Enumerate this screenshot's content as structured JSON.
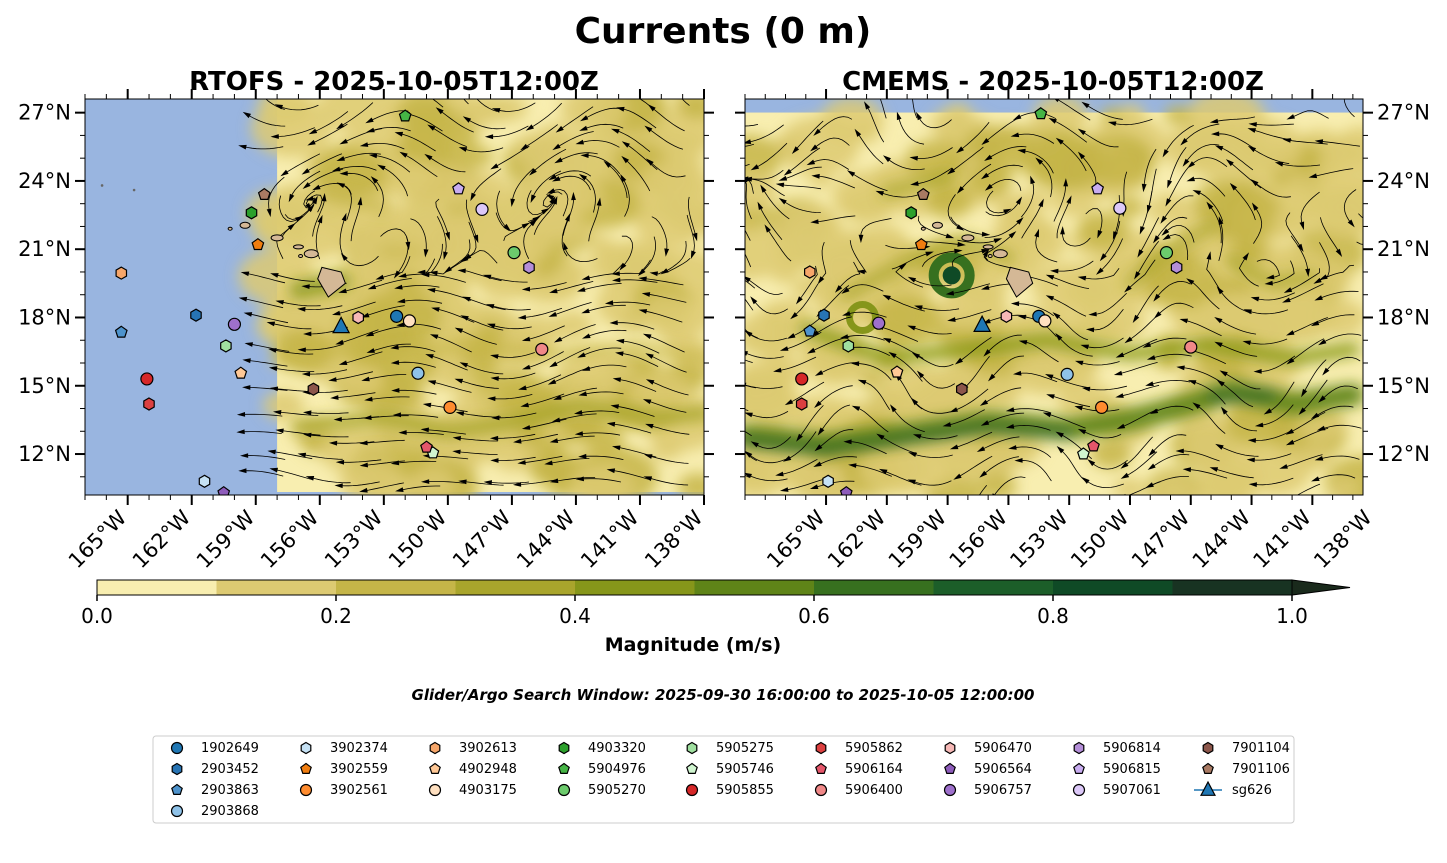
{
  "figure_title": "Currents (0 m)",
  "subtitle": "Glider/Argo Search Window: 2025-09-30 16:00:00 to 2025-10-05 12:00:00",
  "colors": {
    "land_ocean_mask": "#99b5e0",
    "island": "#d4b896",
    "streamline": "#000000",
    "sg626": "#1f77b4"
  },
  "chart_data": [
    {
      "type": "map",
      "panel": "left",
      "title": "RTOFS - 2025-10-05T12:00Z",
      "xlim": [
        -167,
        -138
      ],
      "ylim": [
        10.2,
        27.6
      ],
      "data_extent_west_lon": -158,
      "x_ticks": [
        "165°W",
        "162°W",
        "159°W",
        "156°W",
        "153°W",
        "150°W",
        "147°W",
        "144°W",
        "141°W",
        "138°W"
      ],
      "x_tick_values": [
        -165,
        -162,
        -159,
        -156,
        -153,
        -150,
        -147,
        -144,
        -141,
        -138
      ],
      "y_ticks": [
        "12°N",
        "15°N",
        "18°N",
        "21°N",
        "24°N",
        "27°N"
      ],
      "y_tick_values": [
        12,
        15,
        18,
        21,
        24,
        27
      ],
      "ytick_side": "left",
      "markers": [
        {
          "id": "1902649",
          "lon": -152.4,
          "lat": 18.05
        },
        {
          "id": "2903452",
          "lon": -161.8,
          "lat": 18.1
        },
        {
          "id": "2903863",
          "lon": -165.3,
          "lat": 17.35
        },
        {
          "id": "2903868",
          "lon": -151.4,
          "lat": 15.55
        },
        {
          "id": "3902374",
          "lon": -161.4,
          "lat": 10.8
        },
        {
          "id": "3902559",
          "lon": -158.9,
          "lat": 21.2
        },
        {
          "id": "3902561",
          "lon": -149.9,
          "lat": 14.05
        },
        {
          "id": "3902613",
          "lon": -165.3,
          "lat": 19.95
        },
        {
          "id": "4902948",
          "lon": -159.7,
          "lat": 15.55
        },
        {
          "id": "4903175",
          "lon": -151.8,
          "lat": 17.85
        },
        {
          "id": "4903320",
          "lon": -159.2,
          "lat": 22.6
        },
        {
          "id": "5904976",
          "lon": -152.0,
          "lat": 26.85
        },
        {
          "id": "5905270",
          "lon": -146.9,
          "lat": 20.85
        },
        {
          "id": "5905275",
          "lon": -160.4,
          "lat": 16.75
        },
        {
          "id": "5905746",
          "lon": -150.7,
          "lat": 12.05
        },
        {
          "id": "5905855",
          "lon": -164.1,
          "lat": 15.3
        },
        {
          "id": "5905862",
          "lon": -164.0,
          "lat": 14.2
        },
        {
          "id": "5906164",
          "lon": -151.0,
          "lat": 12.3
        },
        {
          "id": "5906400",
          "lon": -145.6,
          "lat": 16.6
        },
        {
          "id": "5906470",
          "lon": -154.2,
          "lat": 18.0
        },
        {
          "id": "5906564",
          "lon": -160.5,
          "lat": 10.3
        },
        {
          "id": "5906757",
          "lon": -160.0,
          "lat": 17.7
        },
        {
          "id": "5906814",
          "lon": -146.2,
          "lat": 20.2
        },
        {
          "id": "5906815",
          "lon": -149.5,
          "lat": 23.65
        },
        {
          "id": "5907061",
          "lon": -148.4,
          "lat": 22.75
        },
        {
          "id": "7901104",
          "lon": -156.3,
          "lat": 14.85
        },
        {
          "id": "7901106",
          "lon": -158.6,
          "lat": 23.4
        },
        {
          "id": "sg626",
          "lon": -155.0,
          "lat": 17.6
        }
      ]
    },
    {
      "type": "map",
      "panel": "right",
      "title": "CMEMS - 2025-10-05T12:00Z",
      "xlim": [
        -169,
        -138.5
      ],
      "ylim": [
        10.2,
        27.6
      ],
      "data_north_lat": 27.0,
      "x_ticks": [
        "165°W",
        "162°W",
        "159°W",
        "156°W",
        "153°W",
        "150°W",
        "147°W",
        "144°W",
        "141°W",
        "138°W"
      ],
      "x_tick_values": [
        -165,
        -162,
        -159,
        -156,
        -153,
        -150,
        -147,
        -144,
        -141,
        -138
      ],
      "y_ticks": [
        "12°N",
        "15°N",
        "18°N",
        "21°N",
        "24°N",
        "27°N"
      ],
      "y_tick_values": [
        12,
        15,
        18,
        21,
        24,
        27
      ],
      "ytick_side": "right",
      "markers": [
        {
          "id": "1902649",
          "lon": -154.5,
          "lat": 18.05
        },
        {
          "id": "2903452",
          "lon": -165.1,
          "lat": 18.1
        },
        {
          "id": "2903863",
          "lon": -165.8,
          "lat": 17.4
        },
        {
          "id": "2903868",
          "lon": -153.1,
          "lat": 15.5
        },
        {
          "id": "3902374",
          "lon": -164.9,
          "lat": 10.8
        },
        {
          "id": "3902559",
          "lon": -160.3,
          "lat": 21.2
        },
        {
          "id": "3902561",
          "lon": -151.4,
          "lat": 14.05
        },
        {
          "id": "3902613",
          "lon": -165.8,
          "lat": 20.0
        },
        {
          "id": "4902948",
          "lon": -161.5,
          "lat": 15.6
        },
        {
          "id": "4903175",
          "lon": -154.2,
          "lat": 17.85
        },
        {
          "id": "4903320",
          "lon": -160.8,
          "lat": 22.6
        },
        {
          "id": "5904976",
          "lon": -154.4,
          "lat": 26.95
        },
        {
          "id": "5905270",
          "lon": -148.2,
          "lat": 20.85
        },
        {
          "id": "5905275",
          "lon": -163.9,
          "lat": 16.75
        },
        {
          "id": "5905746",
          "lon": -152.3,
          "lat": 12.0
        },
        {
          "id": "5905855",
          "lon": -166.2,
          "lat": 15.3
        },
        {
          "id": "5905862",
          "lon": -166.2,
          "lat": 14.2
        },
        {
          "id": "5906164",
          "lon": -151.8,
          "lat": 12.35
        },
        {
          "id": "5906400",
          "lon": -147.0,
          "lat": 16.7
        },
        {
          "id": "5906470",
          "lon": -156.1,
          "lat": 18.05
        },
        {
          "id": "5906564",
          "lon": -164.0,
          "lat": 10.3
        },
        {
          "id": "5906757",
          "lon": -162.4,
          "lat": 17.75
        },
        {
          "id": "5906814",
          "lon": -147.7,
          "lat": 20.2
        },
        {
          "id": "5906815",
          "lon": -151.6,
          "lat": 23.65
        },
        {
          "id": "5907061",
          "lon": -150.5,
          "lat": 22.8
        },
        {
          "id": "7901104",
          "lon": -158.3,
          "lat": 14.85
        },
        {
          "id": "7901106",
          "lon": -160.2,
          "lat": 23.4
        },
        {
          "id": "sg626",
          "lon": -157.3,
          "lat": 17.65
        }
      ]
    }
  ],
  "colorbar": {
    "label": "Magnitude (m/s)",
    "min": 0.0,
    "max": 1.0,
    "ticks": [
      "0.0",
      "0.2",
      "0.4",
      "0.6",
      "0.8",
      "1.0"
    ],
    "tick_values": [
      0.0,
      0.2,
      0.4,
      0.6,
      0.8,
      1.0
    ],
    "levels": [
      0.0,
      0.1,
      0.2,
      0.3,
      0.4,
      0.5,
      0.6,
      0.7,
      0.8,
      0.9,
      1.0
    ],
    "colors": [
      "#f8eeb0",
      "#ddca72",
      "#c5b548",
      "#a9a52c",
      "#86961a",
      "#5f8418",
      "#37701f",
      "#1c5e29",
      "#0f4a26",
      "#183322"
    ],
    "extend_color": "#1a2a1c"
  },
  "legend": [
    {
      "label": "1902649",
      "color": "#1f77b4",
      "shape": "circle"
    },
    {
      "label": "2903452",
      "color": "#2774b4",
      "shape": "hexagon"
    },
    {
      "label": "2903863",
      "color": "#4e93cc",
      "shape": "pentagon"
    },
    {
      "label": "2903868",
      "color": "#8fc2e8",
      "shape": "circle"
    },
    {
      "label": "3902374",
      "color": "#c6e2f5",
      "shape": "hexagon"
    },
    {
      "label": "3902559",
      "color": "#f07d10",
      "shape": "pentagon"
    },
    {
      "label": "3902561",
      "color": "#ff8c2f",
      "shape": "circle"
    },
    {
      "label": "3902613",
      "color": "#f6a66a",
      "shape": "hexagon"
    },
    {
      "label": "4902948",
      "color": "#ffc896",
      "shape": "pentagon"
    },
    {
      "label": "4903175",
      "color": "#ffe0c0",
      "shape": "circle"
    },
    {
      "label": "4903320",
      "color": "#2ca02c",
      "shape": "hexagon"
    },
    {
      "label": "5904976",
      "color": "#45b445",
      "shape": "pentagon"
    },
    {
      "label": "5905270",
      "color": "#6ccb6c",
      "shape": "circle"
    },
    {
      "label": "5905275",
      "color": "#a0e0a0",
      "shape": "hexagon"
    },
    {
      "label": "5905746",
      "color": "#d0f5d0",
      "shape": "pentagon"
    },
    {
      "label": "5905855",
      "color": "#d62728",
      "shape": "circle"
    },
    {
      "label": "5905862",
      "color": "#dc4040",
      "shape": "hexagon"
    },
    {
      "label": "5906164",
      "color": "#e5566a",
      "shape": "pentagon"
    },
    {
      "label": "5906400",
      "color": "#f08888",
      "shape": "circle"
    },
    {
      "label": "5906470",
      "color": "#f6b8b6",
      "shape": "hexagon"
    },
    {
      "label": "5906564",
      "color": "#8e5cbb",
      "shape": "pentagon"
    },
    {
      "label": "5906757",
      "color": "#9e70cc",
      "shape": "circle"
    },
    {
      "label": "5906814",
      "color": "#b48ed8",
      "shape": "hexagon"
    },
    {
      "label": "5906815",
      "color": "#c8acf0",
      "shape": "pentagon"
    },
    {
      "label": "5907061",
      "color": "#dcc8f8",
      "shape": "circle"
    },
    {
      "label": "7901104",
      "color": "#8c564b",
      "shape": "hexagon"
    },
    {
      "label": "7901106",
      "color": "#a97a63",
      "shape": "pentagon"
    },
    {
      "label": "sg626",
      "color": "#1f77b4",
      "shape": "triangle"
    }
  ]
}
